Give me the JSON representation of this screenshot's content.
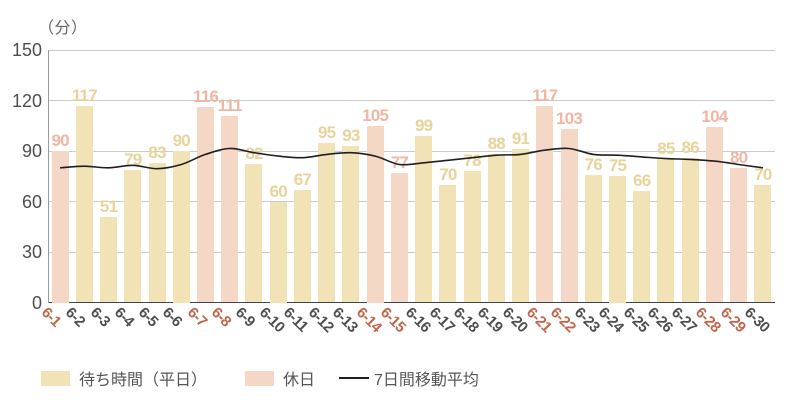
{
  "unit_label": "（分）",
  "legend": {
    "weekday": "待ち時間（平日）",
    "holiday": "休日",
    "average": "7日間移動平均"
  },
  "colors": {
    "background": "#ffffff",
    "weekday_bar": "#f1e3b5",
    "holiday_bar": "#f5d7c5",
    "weekday_value_label": "#e8d39b",
    "holiday_value_label": "#f1b5a4",
    "weekday_axis_label": "#4e4e4e",
    "holiday_axis_label": "#c0664b",
    "y_axis_label": "#4e4e4e",
    "grid_line": "#cbcbcb",
    "y_axis_line": "#9a9a9a",
    "x_axis_line": "#444444",
    "average_line": "#1f1f1f",
    "legend_text": "#555555",
    "unit_text": "#666666"
  },
  "chart_data": {
    "type": "bar",
    "title": "",
    "xlabel": "",
    "ylabel": "（分）",
    "ylim": [
      0,
      150
    ],
    "y_ticks": [
      0,
      30,
      60,
      90,
      120,
      150
    ],
    "grid": true,
    "legend_position": "bottom",
    "categories": [
      "6-1",
      "6-2",
      "6-3",
      "6-4",
      "6-5",
      "6-6",
      "6-7",
      "6-8",
      "6-9",
      "6-10",
      "6-11",
      "6-12",
      "6-13",
      "6-14",
      "6-15",
      "6-16",
      "6-17",
      "6-18",
      "6-19",
      "6-20",
      "6-21",
      "6-22",
      "6-23",
      "6-24",
      "6-25",
      "6-26",
      "6-27",
      "6-28",
      "6-29",
      "6-30"
    ],
    "series": [
      {
        "name": "待ち時間（平日・休日）",
        "type": "bar",
        "values": [
          90,
          117,
          51,
          79,
          83,
          90,
          116,
          111,
          82,
          60,
          67,
          95,
          93,
          105,
          77,
          99,
          70,
          78,
          88,
          91,
          117,
          103,
          76,
          75,
          66,
          85,
          86,
          104,
          80,
          70
        ],
        "day_types": [
          "holiday",
          "weekday",
          "weekday",
          "weekday",
          "weekday",
          "weekday",
          "holiday",
          "holiday",
          "weekday",
          "weekday",
          "weekday",
          "weekday",
          "weekday",
          "holiday",
          "holiday",
          "weekday",
          "weekday",
          "weekday",
          "weekday",
          "weekday",
          "holiday",
          "holiday",
          "weekday",
          "weekday",
          "weekday",
          "weekday",
          "weekday",
          "holiday",
          "holiday",
          "weekday"
        ]
      },
      {
        "name": "7日間移動平均",
        "type": "line",
        "values": [
          80,
          81,
          80,
          81.5,
          79.5,
          82,
          88,
          91.5,
          89,
          87,
          86,
          88,
          89,
          87,
          82,
          83,
          84.5,
          86,
          87.5,
          88,
          90.5,
          91.5,
          88,
          87.5,
          86.5,
          85.5,
          85,
          84,
          82,
          80
        ]
      }
    ]
  }
}
